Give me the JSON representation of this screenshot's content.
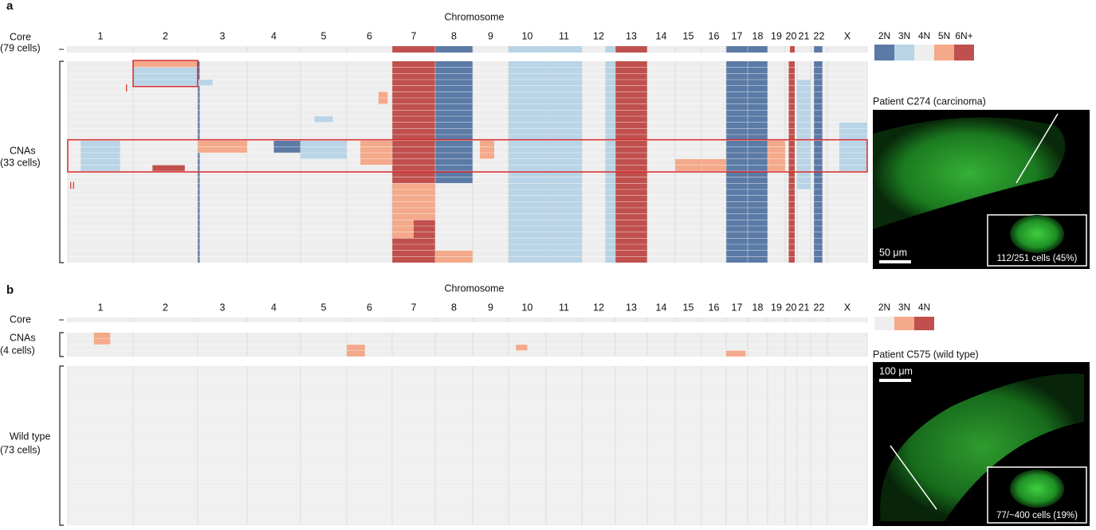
{
  "panels": [
    {
      "label": "a",
      "x_title": "Chromosome",
      "chromosomes": [
        "1",
        "2",
        "3",
        "4",
        "5",
        "6",
        "7",
        "8",
        "9",
        "10",
        "11",
        "12",
        "13",
        "14",
        "15",
        "16",
        "17",
        "18",
        "19",
        "20",
        "21",
        "22",
        "X"
      ],
      "legend": [
        "2N",
        "3N",
        "4N",
        "5N",
        "6N+"
      ],
      "colors": [
        "#5b7aa6",
        "#b8d4e6",
        "#eeeeee",
        "#f4a98a",
        "#c0504d"
      ],
      "tracks": [
        {
          "label": "Core",
          "sublabel": "(79 cells)",
          "rows": 1,
          "background": 2,
          "segments": [
            [
              6,
              0,
              0,
              4
            ],
            [
              7,
              0,
              0,
              0
            ],
            [
              9,
              0,
              0,
              1
            ],
            [
              10,
              0,
              0,
              1
            ],
            [
              11,
              0,
              0,
              1,
              0.7,
              1
            ],
            [
              12,
              0,
              0,
              4
            ],
            [
              16,
              0,
              0,
              0
            ],
            [
              17,
              0,
              0,
              0
            ],
            [
              19,
              0,
              0,
              4,
              0.4,
              0.8
            ],
            [
              21,
              0,
              0,
              0,
              0.2,
              0.7
            ]
          ]
        },
        {
          "label": "CNAs",
          "sublabel": "(33 cells)",
          "rows": 33,
          "background": 2,
          "segments": [
            [
              1,
              0,
              0,
              3
            ],
            [
              1,
              1,
              3,
              1
            ],
            [
              2,
              0,
              32,
              0,
              0,
              0.04
            ],
            [
              2,
              3,
              3,
              1,
              0,
              0.3
            ],
            [
              6,
              0,
              32,
              4
            ],
            [
              6,
              20,
              25,
              3
            ],
            [
              6,
              26,
              28,
              3,
              0,
              0.5
            ],
            [
              7,
              0,
              19,
              0
            ],
            [
              7,
              31,
              32,
              3
            ],
            [
              9,
              0,
              32,
              1
            ],
            [
              10,
              0,
              32,
              1
            ],
            [
              11,
              0,
              32,
              1,
              0.7,
              1
            ],
            [
              12,
              0,
              32,
              4
            ],
            [
              16,
              0,
              32,
              0
            ],
            [
              17,
              0,
              32,
              0
            ],
            [
              19,
              0,
              32,
              4,
              0.3,
              0.8
            ],
            [
              20,
              3,
              20,
              1
            ],
            [
              21,
              0,
              32,
              0,
              0.2,
              0.7
            ],
            [
              22,
              10,
              17,
              1,
              0.3,
              1
            ],
            [
              5,
              5,
              6,
              3,
              0.7,
              0.9
            ],
            [
              4,
              9,
              9,
              1,
              0.3,
              0.7
            ],
            [
              0,
              13,
              17,
              1,
              0.2,
              0.8
            ],
            [
              2,
              13,
              14,
              3
            ],
            [
              3,
              13,
              14,
              0,
              0.5,
              1
            ],
            [
              4,
              13,
              15,
              1
            ],
            [
              5,
              13,
              16,
              3,
              0.3,
              1
            ],
            [
              1,
              17,
              17,
              4,
              0.3,
              0.8
            ],
            [
              8,
              13,
              15,
              3,
              0.2,
              0.6
            ],
            [
              14,
              16,
              17,
              3
            ],
            [
              15,
              16,
              17,
              3
            ],
            [
              18,
              13,
              17,
              3
            ]
          ]
        }
      ],
      "markers": [
        "I",
        "II"
      ],
      "image": {
        "title": "Patient C274 (carcinoma)",
        "scale": "50 μm",
        "inset": "112/251 cells (45%)"
      }
    },
    {
      "label": "b",
      "x_title": "Chromosome",
      "chromosomes": [
        "1",
        "2",
        "3",
        "4",
        "5",
        "6",
        "7",
        "8",
        "9",
        "10",
        "11",
        "12",
        "13",
        "14",
        "15",
        "16",
        "17",
        "18",
        "19",
        "20",
        "21",
        "22",
        "X"
      ],
      "legend": [
        "2N",
        "3N",
        "4N"
      ],
      "colors": [
        "#eeeeee",
        "#f4a98a",
        "#c0504d"
      ],
      "tracks": [
        {
          "label": "Core",
          "rows": 1,
          "background": 0,
          "segments": []
        },
        {
          "label": "CNAs",
          "sublabel": "(4 cells)",
          "rows": 4,
          "background": 0,
          "segments": [
            [
              0,
              0,
              1,
              1,
              0.4,
              0.65
            ],
            [
              5,
              2,
              3,
              1,
              0,
              0.4
            ],
            [
              9,
              2,
              2,
              1,
              0.2,
              0.5
            ],
            [
              16,
              3,
              3,
              1,
              0,
              0.9
            ]
          ]
        },
        {
          "label": "Wild type",
          "sublabel": "(73 cells)",
          "rows": 73,
          "background": 0,
          "segments": []
        }
      ],
      "image": {
        "title": "Patient C575 (wild type)",
        "scale": "100 μm",
        "inset": "77/~400 cells (19%)"
      }
    }
  ]
}
